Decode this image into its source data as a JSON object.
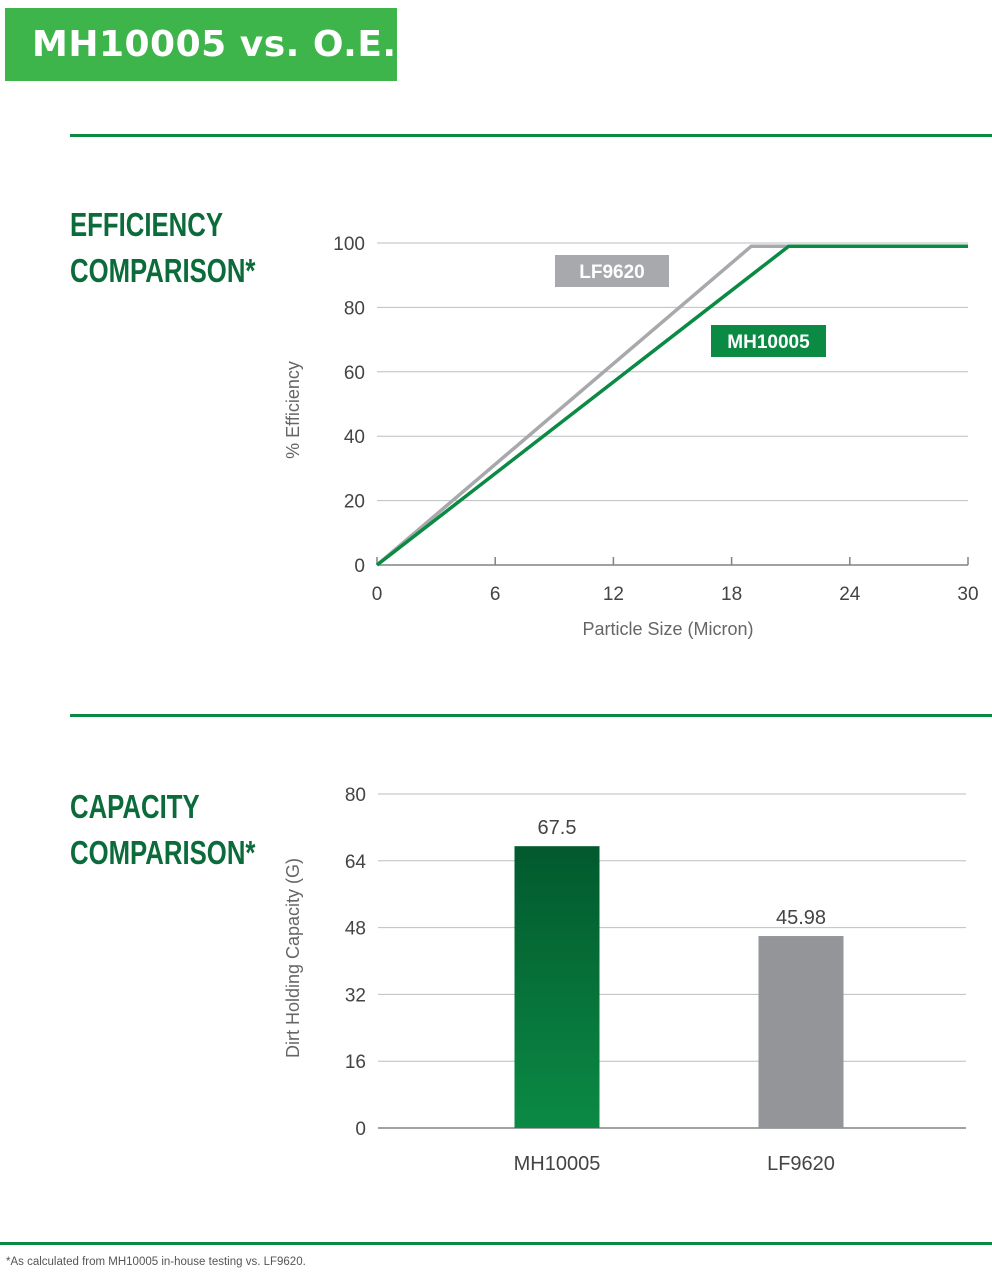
{
  "header": {
    "title": "MH10005 vs. O.E."
  },
  "efficiency_section": {
    "title_line1": "EFFICIENCY",
    "title_line2": "COMPARISON*"
  },
  "capacity_section": {
    "title_line1": "CAPACITY",
    "title_line2": "COMPARISON*"
  },
  "footnote": "*As calculated from MH10005 in-house testing vs. LF9620.",
  "colors": {
    "brand_green": "#3db54a",
    "dark_green": "#0b6b3a",
    "series_green": "#0b8a44",
    "series_gray": "#a7a9ac",
    "bar_gray": "#939598"
  },
  "chart_data": [
    {
      "type": "line",
      "xlabel": "Particle Size (Micron)",
      "ylabel": "% Efficiency",
      "xlim": [
        0,
        30
      ],
      "ylim": [
        0,
        100
      ],
      "xticks": [
        0,
        6,
        12,
        18,
        24,
        30
      ],
      "yticks": [
        0,
        20,
        40,
        60,
        80,
        100
      ],
      "grid": "horizontal",
      "series": [
        {
          "name": "LF9620",
          "color": "#a7a9ac",
          "points": [
            [
              0,
              0
            ],
            [
              19,
              99
            ],
            [
              30,
              99
            ]
          ]
        },
        {
          "name": "MH10005",
          "color": "#0b8a44",
          "points": [
            [
              0,
              0
            ],
            [
              20.9,
              99
            ],
            [
              30,
              99
            ]
          ]
        }
      ]
    },
    {
      "type": "bar",
      "categories": [
        "MH10005",
        "LF9620"
      ],
      "values": [
        67.5,
        45.98
      ],
      "value_labels": [
        "67.5",
        "45.98"
      ],
      "bar_colors": [
        "#0b8a44",
        "#939598"
      ],
      "ylabel": "Dirt Holding Capacity (G)",
      "ylim": [
        0,
        80
      ],
      "yticks": [
        0,
        16,
        32,
        48,
        64,
        80
      ],
      "grid": "horizontal"
    }
  ]
}
